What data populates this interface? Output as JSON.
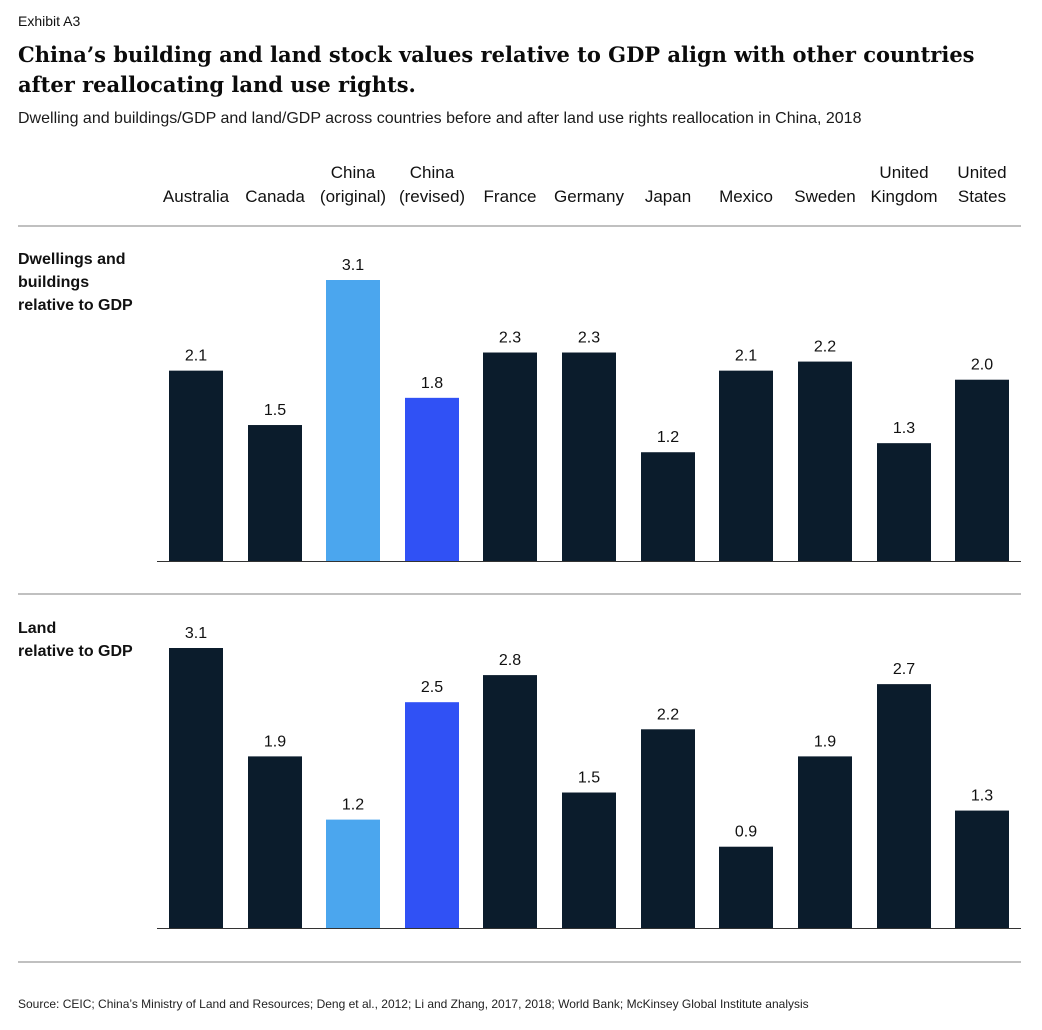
{
  "header": {
    "exhibit": "Exhibit A3",
    "title": "China’s building and land stock values relative to GDP align with other countries after reallocating land use rights.",
    "subtitle": "Dwelling and buildings/GDP and land/GDP across countries before and after land use rights reallocation in China, 2018"
  },
  "footer": {
    "source": "Source: CEIC; China’s Ministry of Land and Resources; Deng et al., 2012; Li and Zhang, 2017, 2018; World Bank; McKinsey Global Institute analysis"
  },
  "chart_data": {
    "type": "bar",
    "categories": [
      [
        "Australia"
      ],
      [
        "Canada"
      ],
      [
        "China",
        "(original)"
      ],
      [
        "China",
        "(revised)"
      ],
      [
        "France"
      ],
      [
        "Germany"
      ],
      [
        "Japan"
      ],
      [
        "Mexico"
      ],
      [
        "Sweden"
      ],
      [
        "United",
        "Kingdom"
      ],
      [
        "United",
        "States"
      ]
    ],
    "colors": {
      "default": "#0b1c2c",
      "china_original": "#4ba6ee",
      "china_revised": "#3051f5"
    },
    "bar_colors": [
      "default",
      "default",
      "china_original",
      "china_revised",
      "default",
      "default",
      "default",
      "default",
      "default",
      "default",
      "default"
    ],
    "series": [
      {
        "label_lines": [
          "Dwellings and",
          "buildings",
          "relative to GDP"
        ],
        "values": [
          2.1,
          1.5,
          3.1,
          1.8,
          2.3,
          2.3,
          1.2,
          2.1,
          2.2,
          1.3,
          2.0
        ],
        "value_labels": [
          "2.1",
          "1.5",
          "3.1",
          "1.8",
          "2.3",
          "2.3",
          "1.2",
          "2.1",
          "2.2",
          "1.3",
          "2.0"
        ]
      },
      {
        "label_lines": [
          "Land",
          "relative to GDP"
        ],
        "values": [
          3.1,
          1.9,
          1.2,
          2.5,
          2.8,
          1.5,
          2.2,
          0.9,
          1.9,
          2.7,
          1.3
        ],
        "value_labels": [
          "3.1",
          "1.9",
          "1.2",
          "2.5",
          "2.8",
          "1.5",
          "2.2",
          "0.9",
          "1.9",
          "2.7",
          "1.3"
        ]
      }
    ],
    "ylim": [
      0,
      3.1
    ],
    "grid": false,
    "legend": "none"
  }
}
